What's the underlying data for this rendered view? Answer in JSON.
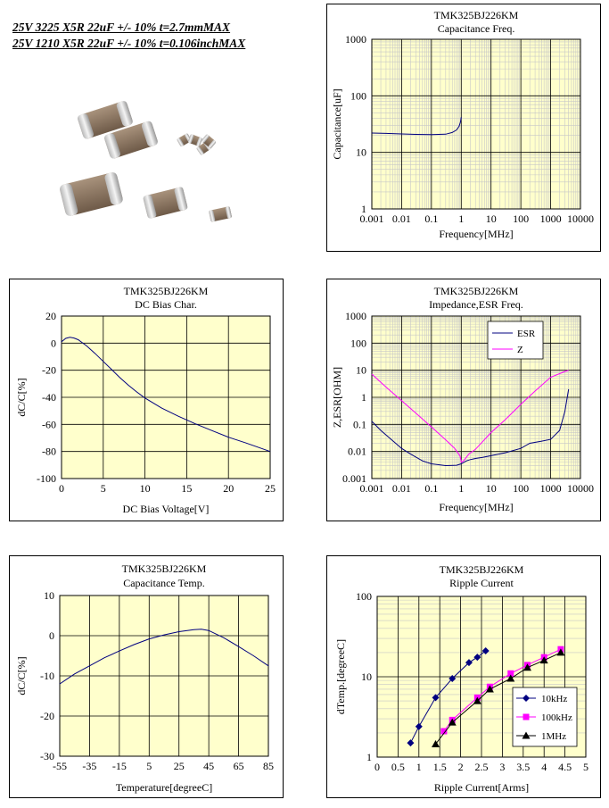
{
  "header": {
    "line1": "25V 3225 X5R 22uF +/- 10% t=2.7mmMAX",
    "line2": "25V 1210 X5R 22uF +/- 10% t=0.106inchMAX"
  },
  "colors": {
    "plot_bg": "#ffffcc",
    "grid_major": "#000000",
    "grid_minor": "#c8c8c8",
    "navy": "#000080",
    "magenta": "#ff00ff",
    "black": "#000000"
  },
  "chart_data": [
    {
      "id": "cap-freq",
      "type": "line",
      "title": "TMK325BJ226KM",
      "subtitle": "Capacitance Freq.",
      "xlabel": "Frequency[MHz]",
      "ylabel": "Capacitance[uF]",
      "xscale": "log",
      "yscale": "log",
      "xlim": [
        0.001,
        10000
      ],
      "ylim": [
        1,
        1000
      ],
      "xticks": [
        "0.001",
        "0.01",
        "0.1",
        "1",
        "10",
        "100",
        "1000",
        "10000"
      ],
      "yticks": [
        "1",
        "10",
        "100",
        "1000"
      ],
      "grid": true,
      "series": [
        {
          "color": "navy",
          "x": [
            0.001,
            0.003,
            0.01,
            0.03,
            0.1,
            0.3,
            0.5,
            0.7,
            0.85,
            0.95,
            1.0
          ],
          "y": [
            22,
            21.7,
            21.2,
            20.8,
            20.6,
            21,
            22.5,
            25,
            29,
            35,
            42
          ]
        }
      ]
    },
    {
      "id": "dc-bias",
      "type": "line",
      "title": "TMK325BJ226KM",
      "subtitle": "DC Bias Char.",
      "xlabel": "DC Bias Voltage[V]",
      "ylabel": "dC/C[%]",
      "xlim": [
        0,
        25
      ],
      "ylim": [
        -100,
        20
      ],
      "xticks": [
        "0",
        "5",
        "10",
        "15",
        "20",
        "25"
      ],
      "yticks": [
        "20",
        "0",
        "-20",
        "-40",
        "-60",
        "-80",
        "-100"
      ],
      "grid": true,
      "series": [
        {
          "color": "navy",
          "x": [
            0,
            0.5,
            1,
            1.5,
            2,
            3,
            4,
            5,
            6,
            7,
            8,
            9,
            10,
            12,
            14,
            16,
            18,
            20,
            22,
            25
          ],
          "y": [
            1,
            3.5,
            4.3,
            3.8,
            2.5,
            -2,
            -7.5,
            -13.5,
            -19.5,
            -25.5,
            -31,
            -36,
            -40.5,
            -48,
            -54,
            -59.5,
            -64.5,
            -69.5,
            -73.5,
            -80
          ]
        }
      ]
    },
    {
      "id": "impedance",
      "type": "line",
      "title": "TMK325BJ226KM",
      "subtitle": "Impedance,ESR Freq.",
      "xlabel": "Frequency[MHz]",
      "ylabel": "Z,ESR[OHM]",
      "xscale": "log",
      "yscale": "log",
      "xlim": [
        0.001,
        10000
      ],
      "ylim": [
        0.001,
        1000
      ],
      "xticks": [
        "0.001",
        "0.01",
        "0.1",
        "1",
        "10",
        "100",
        "1000",
        "10000"
      ],
      "yticks": [
        "1000",
        "100",
        "10",
        "1",
        "0.1",
        "0.01",
        "0.001"
      ],
      "grid": true,
      "legend": "top-right",
      "series": [
        {
          "name": "ESR",
          "color": "navy",
          "x": [
            0.001,
            0.002,
            0.005,
            0.01,
            0.02,
            0.05,
            0.1,
            0.3,
            0.7,
            1,
            1.5,
            2,
            3,
            5,
            10,
            30,
            100,
            200,
            500,
            1000,
            2000,
            3000,
            4000
          ],
          "y": [
            0.13,
            0.06,
            0.025,
            0.013,
            0.008,
            0.0045,
            0.0035,
            0.003,
            0.0031,
            0.0035,
            0.0045,
            0.005,
            0.0055,
            0.006,
            0.007,
            0.009,
            0.013,
            0.02,
            0.024,
            0.028,
            0.06,
            0.3,
            2
          ]
        },
        {
          "name": "Z",
          "color": "magenta",
          "x": [
            0.001,
            0.003,
            0.01,
            0.03,
            0.1,
            0.3,
            0.6,
            0.9,
            1.0,
            1.2,
            1.8,
            3,
            10,
            30,
            100,
            300,
            1000,
            3000,
            4000
          ],
          "y": [
            7.2,
            2.4,
            0.75,
            0.26,
            0.08,
            0.027,
            0.013,
            0.007,
            0.004,
            0.0045,
            0.008,
            0.012,
            0.05,
            0.15,
            0.55,
            1.7,
            5.5,
            9,
            10
          ]
        }
      ]
    },
    {
      "id": "cap-temp",
      "type": "line",
      "title": "TMK325BJ226KM",
      "subtitle": "Capacitance Temp.",
      "xlabel": "Temperature[degreeC]",
      "ylabel": "dC/C[%]",
      "xlim": [
        -55,
        85
      ],
      "ylim": [
        -30,
        10
      ],
      "xticks": [
        "-55",
        "-35",
        "-15",
        "5",
        "25",
        "45",
        "65",
        "85"
      ],
      "yticks": [
        "10",
        "0",
        "-10",
        "-20",
        "-30"
      ],
      "grid": true,
      "series": [
        {
          "color": "navy",
          "x": [
            -55,
            -45,
            -35,
            -25,
            -15,
            -5,
            5,
            15,
            25,
            35,
            40,
            45,
            55,
            65,
            75,
            85
          ],
          "y": [
            -12,
            -9.5,
            -7.5,
            -5.5,
            -3.8,
            -2.2,
            -0.8,
            0.2,
            1,
            1.5,
            1.6,
            1.3,
            -0.5,
            -2.7,
            -5,
            -7.5
          ]
        }
      ]
    },
    {
      "id": "ripple",
      "type": "line",
      "title": "TMK325BJ226KM",
      "subtitle": "Ripple Current",
      "xlabel": "Ripple Current[Arms]",
      "ylabel": "dTemp.[degreeC]",
      "yscale": "log",
      "xlim": [
        0,
        5
      ],
      "ylim": [
        1,
        100
      ],
      "xticks": [
        "0",
        "0.5",
        "1",
        "1.5",
        "2",
        "2.5",
        "3",
        "3.5",
        "4",
        "4.5",
        "5"
      ],
      "yticks": [
        "1",
        "10",
        "100"
      ],
      "grid": true,
      "legend": "bottom-right",
      "series": [
        {
          "name": "10kHz",
          "color": "navy",
          "marker": "diamond",
          "x": [
            0.8,
            1.0,
            1.4,
            1.8,
            2.2,
            2.4,
            2.6
          ],
          "y": [
            1.5,
            2.4,
            5.5,
            9.5,
            15,
            17.5,
            21
          ]
        },
        {
          "name": "100kHz",
          "color": "magenta",
          "marker": "square",
          "x": [
            1.6,
            1.8,
            2.4,
            2.7,
            3.2,
            3.6,
            4.0,
            4.4
          ],
          "y": [
            2.1,
            2.9,
            5.5,
            7.5,
            11,
            14,
            17.5,
            22
          ]
        },
        {
          "name": "1MHz",
          "color": "black",
          "marker": "triangle",
          "x": [
            1.4,
            1.8,
            2.4,
            2.7,
            3.2,
            3.6,
            4.0,
            4.4
          ],
          "y": [
            1.45,
            2.7,
            5,
            7,
            9.5,
            13,
            16,
            20
          ]
        }
      ]
    }
  ]
}
